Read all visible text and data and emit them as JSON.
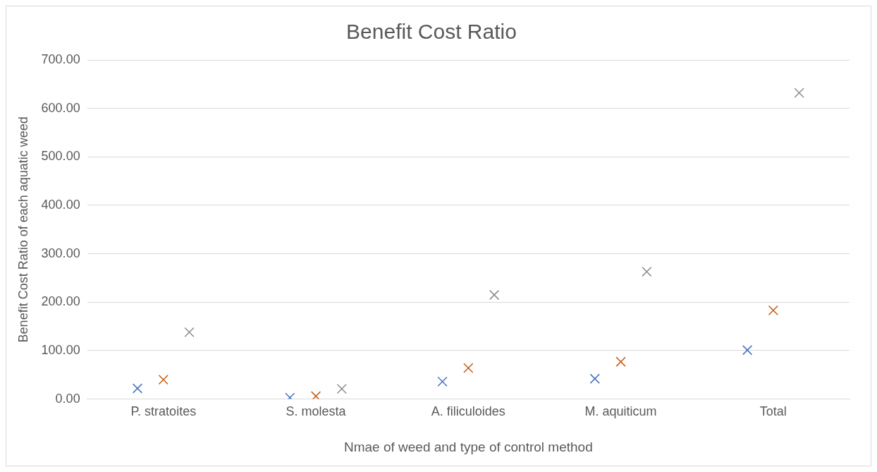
{
  "chart_data": {
    "type": "scatter",
    "title": "Benefit Cost Ratio",
    "xlabel": "Nmae of weed and type of control method",
    "ylabel": "Benefit Cost Ratio of each aquatic weed",
    "categories": [
      "P. stratoites",
      "S. molesta",
      "A. filiculoides",
      "M. aquiticum",
      "Total"
    ],
    "series": [
      {
        "color": "#4472c4",
        "values": [
          22,
          3,
          36,
          42,
          101
        ]
      },
      {
        "color": "#c55a11",
        "values": [
          40,
          6,
          64,
          77,
          183
        ]
      },
      {
        "color": "#8c8c8c",
        "values": [
          138,
          21,
          215,
          263,
          632
        ]
      }
    ],
    "ylim": [
      0,
      700
    ],
    "yticks": [
      {
        "value": 0,
        "label": "0.00"
      },
      {
        "value": 100,
        "label": "100.00"
      },
      {
        "value": 200,
        "label": "200.00"
      },
      {
        "value": 300,
        "label": "300.00"
      },
      {
        "value": 400,
        "label": "400.00"
      },
      {
        "value": 500,
        "label": "500.00"
      },
      {
        "value": 600,
        "label": "600.00"
      },
      {
        "value": 700,
        "label": "700.00"
      }
    ],
    "grid": "y",
    "marker": "cross"
  }
}
